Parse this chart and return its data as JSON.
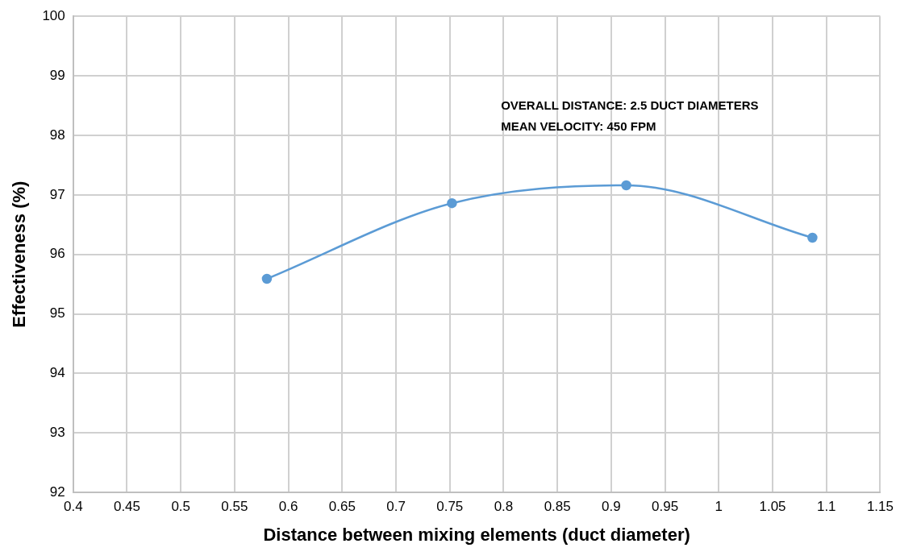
{
  "chart_data": {
    "type": "line",
    "xlabel": "Distance between mixing elements (duct diameter)",
    "ylabel": "Effectiveness (%)",
    "x": [
      0.58,
      0.752,
      0.914,
      1.087
    ],
    "series": [
      {
        "color": "#5b9bd5",
        "values": [
          95.59,
          96.86,
          97.16,
          96.28
        ]
      }
    ],
    "xlim": [
      0.4,
      1.15
    ],
    "xticks": [
      0.4,
      0.45,
      0.5,
      0.55,
      0.6,
      0.65,
      0.7,
      0.75,
      0.8,
      0.85,
      0.9,
      0.95,
      1,
      1.05,
      1.1,
      1.15
    ],
    "ylim": [
      92,
      100
    ],
    "yticks": [
      92,
      93,
      94,
      95,
      96,
      97,
      98,
      99,
      100
    ],
    "annotations": [
      "OVERALL DISTANCE: 2.5 DUCT DIAMETERS",
      "MEAN VELOCITY: 450 FPM"
    ],
    "grid": true,
    "legend": false,
    "marker": "circle",
    "line_style": "solid"
  }
}
